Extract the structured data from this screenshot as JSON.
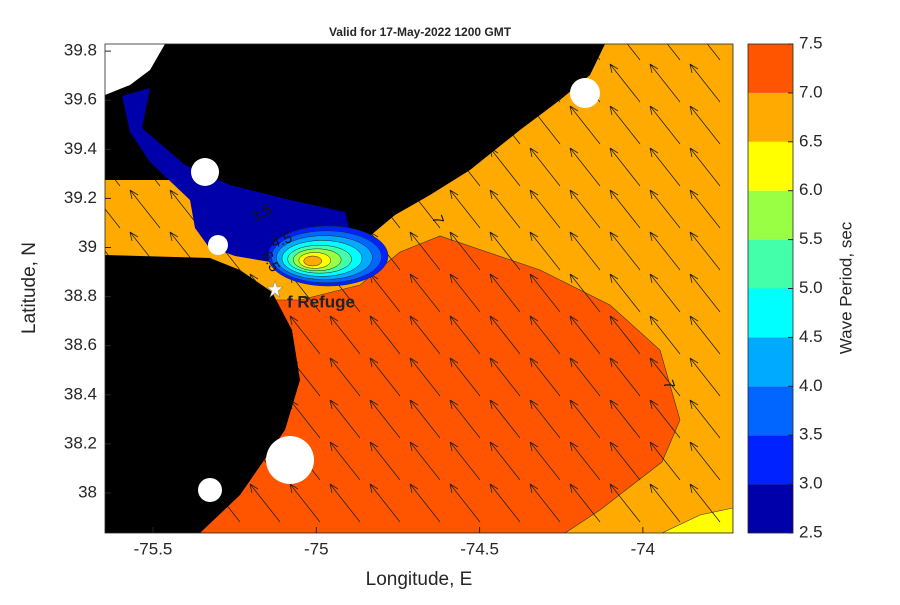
{
  "chart_data": {
    "type": "contourmap",
    "title": "Valid for 17-May-2022 1200 GMT",
    "xlabel": "Longitude, E",
    "ylabel": "Latitude, N",
    "xlim": [
      -75.647,
      -73.724
    ],
    "ylim": [
      37.837,
      39.829
    ],
    "xticks": [
      -75.5,
      -75,
      -74.5,
      -74
    ],
    "yticks": [
      38,
      38.2,
      38.4,
      38.6,
      38.8,
      39,
      39.2,
      39.4,
      39.6,
      39.8
    ],
    "colorbar_label": "Wave Period, sec",
    "clim": [
      2.5,
      7.5
    ],
    "levels": [
      2.5,
      3,
      3.5,
      4,
      4.5,
      5,
      5.5,
      6,
      6.5,
      7,
      7.5
    ],
    "colors": [
      "#0000aa",
      "#0022ff",
      "#0066ff",
      "#00aaff",
      "#00ffff",
      "#44ffaa",
      "#99ff44",
      "#ffff00",
      "#ffaa00",
      "#ff5500"
    ],
    "cticks": [
      2.5,
      {
        "value": 3,
        "label": "3.0"
      },
      3.5,
      {
        "value": 4,
        "label": "4.0"
      },
      4.5,
      {
        "value": 5,
        "label": "5.0"
      },
      5.5,
      {
        "value": 6,
        "label": "6.0"
      },
      6.5,
      {
        "value": 7,
        "label": "7.0"
      },
      7.5
    ],
    "annotation": "f Refuge",
    "contour_labels": [
      "3.5",
      "4.5",
      "6.5",
      "7",
      "7"
    ]
  }
}
